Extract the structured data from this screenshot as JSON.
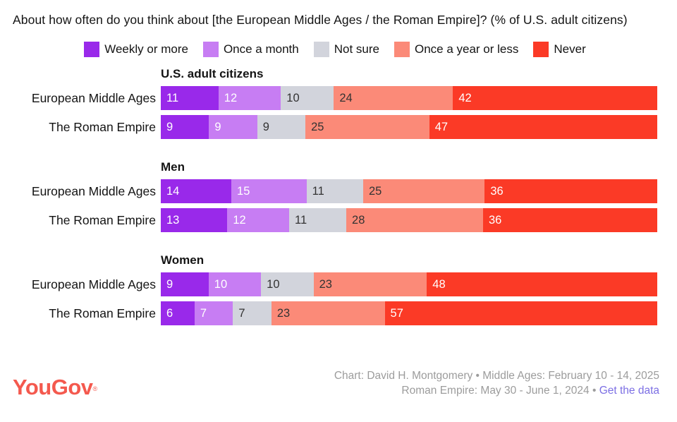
{
  "title": "About how often do you think about [the European Middle Ages / the Roman Empire]? (% of U.S. adult citizens)",
  "chart_data": {
    "type": "bar",
    "stacked": true,
    "orientation": "horizontal",
    "xlim": [
      0,
      100
    ],
    "legend_position": "top-center",
    "value_labels": "inside-start",
    "legend": [
      {
        "label": "Weekly or more",
        "color": "#9929EA",
        "text_color": "#ffffff"
      },
      {
        "label": "Once a month",
        "color": "#C77DF3",
        "text_color": "#ffffff"
      },
      {
        "label": "Not sure",
        "color": "#D2D4DC",
        "text_color": "#333333"
      },
      {
        "label": "Once a year or less",
        "color": "#FB8A78",
        "text_color": "#333333"
      },
      {
        "label": "Never",
        "color": "#FB3A26",
        "text_color": "#ffffff"
      }
    ],
    "groups": [
      {
        "name": "U.S. adult citizens",
        "rows": [
          {
            "label": "European Middle Ages",
            "values": [
              11,
              12,
              10,
              24,
              42
            ]
          },
          {
            "label": "The Roman Empire",
            "values": [
              9,
              9,
              9,
              25,
              47
            ]
          }
        ]
      },
      {
        "name": "Men",
        "rows": [
          {
            "label": "European Middle Ages",
            "values": [
              14,
              15,
              11,
              25,
              36
            ]
          },
          {
            "label": "The Roman Empire",
            "values": [
              13,
              12,
              11,
              28,
              36
            ]
          }
        ]
      },
      {
        "name": "Women",
        "rows": [
          {
            "label": "European Middle Ages",
            "values": [
              9,
              10,
              10,
              23,
              48
            ]
          },
          {
            "label": "The Roman Empire",
            "values": [
              6,
              7,
              7,
              23,
              57
            ]
          }
        ]
      }
    ]
  },
  "footer": {
    "logo_text": "YouGov",
    "logo_reg_mark": "®",
    "logo_color": "#F4594E",
    "credit_line1": "Chart: David H. Montgomery • Middle Ages: February 10 - 14, 2025",
    "credit_line2_prefix": "Roman Empire: May 30 - June 1, 2024 • ",
    "credit_link_label": "Get the data",
    "credit_color": "#9C9C9C",
    "link_color": "#7C6FE4"
  }
}
